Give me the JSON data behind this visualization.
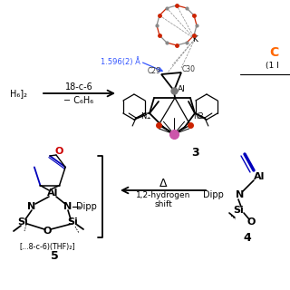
{
  "background": "#ffffff",
  "arrow1_label_top": "18-c-6",
  "arrow1_label_bottom": "− C₆H₆",
  "arrow2_label_top": "Δ",
  "arrow2_label_bottom1": "1,2-hydrogen",
  "arrow2_label_bottom2": "shift",
  "compound3_label": "3",
  "compound4_label": "4",
  "compound5_label": "5",
  "compound5_bracket_label": "[...8-c-6)(THF)₂]",
  "distance_label": "1.596(2) Å",
  "reactant_label": "H₆]₂",
  "colors": {
    "furan_blue": "#0000bb",
    "furan_o": "#cc0000",
    "distance_blue": "#3355ff",
    "crystal_red": "#cc2200",
    "crystal_pink": "#cc55aa",
    "crystal_gray": "#888888",
    "orange_C": "#ff6600",
    "black": "#000000",
    "dark_gray": "#333333"
  }
}
